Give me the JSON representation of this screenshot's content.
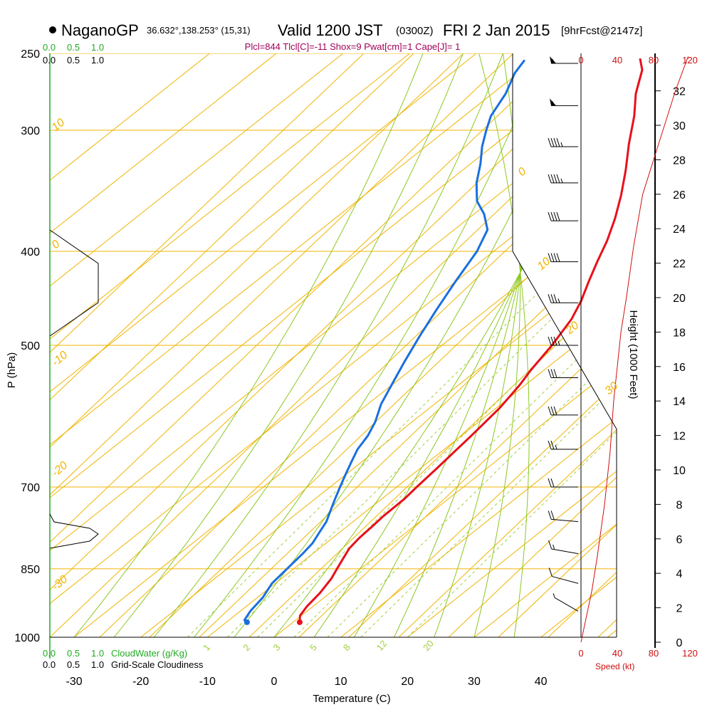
{
  "header": {
    "station": "NaganoGP",
    "coords": "36.632°,138.253° (15,31)",
    "valid": "Valid 1200 JST",
    "utc": "(0300Z)",
    "date": "FRI 2 Jan 2015",
    "forecast": "[9hrFcst@2147z]",
    "indices": "Plcl=844 Tlcl[C]=-11 Shox=9 Pwat[cm]=1 Cape[J]= 1"
  },
  "colors": {
    "temperature": "#e8101a",
    "dewpoint": "#1a6fe0",
    "isotherm": "#f0b400",
    "moist_adiabat": "#8cc820",
    "mixing_ratio": "#a0d040",
    "cloud_water": "#22aa22",
    "speed_profile": "#d01010",
    "indices_text": "#a0005a"
  },
  "chart_data": {
    "type": "line",
    "diagram": "skew-T log-P",
    "xlabel": "Temperature (C)",
    "ylabel": "P (hPa)",
    "x_ticks": [
      "-30",
      "-20",
      "-10",
      "0",
      "10",
      "20",
      "30",
      "40"
    ],
    "p_ticks": [
      "250",
      "300",
      "400",
      "500",
      "700",
      "850",
      "1000"
    ],
    "x_range": [
      -33,
      52
    ],
    "p_range": [
      250,
      1000
    ],
    "isotherm_labels": [
      "10",
      "0",
      "-10",
      "-20",
      "-30",
      "0",
      "10",
      "20",
      "30"
    ],
    "mixing_ratio_labels": [
      "1",
      "2",
      "3",
      "5",
      "8",
      "12",
      "20"
    ],
    "top_scale_colored": [
      "0.0",
      "0.5",
      "1.0"
    ],
    "top_scale_black": [
      "0.0",
      "0.5",
      "1.0"
    ],
    "bottom_scale_colored": [
      "0.0",
      "0.5",
      "1.0"
    ],
    "bottom_scale_black": [
      "0.0",
      "0.5",
      "1.0"
    ],
    "cloud_water_label": "CloudWater (g/Kg)",
    "cloudiness_label": "Grid-Scale Cloudiness",
    "speed_ticks": [
      "0",
      "40",
      "80",
      "120"
    ],
    "speed_label": "Speed (kt)",
    "height_ticks": [
      "0",
      "2",
      "4",
      "6",
      "8",
      "10",
      "12",
      "14",
      "16",
      "18",
      "20",
      "22",
      "24",
      "26",
      "28",
      "30",
      "32"
    ],
    "height_label": "Height (1000 Feet)",
    "series": [
      {
        "name": "Temperature",
        "points": [
          [
            1.0,
            965
          ],
          [
            -0.2,
            950
          ],
          [
            -0.9,
            930
          ],
          [
            -1.5,
            900
          ],
          [
            -2.5,
            870
          ],
          [
            -3.5,
            850
          ],
          [
            -4.5,
            830
          ],
          [
            -5.5,
            810
          ],
          [
            -6.0,
            790
          ],
          [
            -6.2,
            770
          ],
          [
            -6.5,
            750
          ],
          [
            -6.6,
            720
          ],
          [
            -7.0,
            700
          ],
          [
            -7.5,
            670
          ],
          [
            -8.5,
            620
          ],
          [
            -9.5,
            580
          ],
          [
            -10.8,
            550
          ],
          [
            -12.0,
            530
          ],
          [
            -13.5,
            500
          ],
          [
            -15.5,
            470
          ],
          [
            -17.5,
            450
          ],
          [
            -20.0,
            430
          ],
          [
            -22.5,
            410
          ],
          [
            -25.0,
            390
          ],
          [
            -28.0,
            370
          ],
          [
            -31.5,
            350
          ],
          [
            -35.5,
            330
          ],
          [
            -40.0,
            310
          ],
          [
            -44.5,
            290
          ],
          [
            -48.5,
            275
          ],
          [
            -52.0,
            260
          ],
          [
            -54.5,
            253
          ]
        ]
      },
      {
        "name": "Dewpoint",
        "points": [
          [
            -6.9,
            965
          ],
          [
            -7.7,
            960
          ],
          [
            -8.5,
            940
          ],
          [
            -9.2,
            910
          ],
          [
            -10.5,
            880
          ],
          [
            -11.0,
            850
          ],
          [
            -11.5,
            820
          ],
          [
            -12.0,
            800
          ],
          [
            -13.0,
            780
          ],
          [
            -14.0,
            760
          ],
          [
            -15.5,
            740
          ],
          [
            -17.0,
            720
          ],
          [
            -18.5,
            700
          ],
          [
            -20.0,
            680
          ],
          [
            -21.5,
            660
          ],
          [
            -23.0,
            640
          ],
          [
            -24.0,
            620
          ],
          [
            -25.5,
            600
          ],
          [
            -28.0,
            575
          ],
          [
            -30.0,
            550
          ],
          [
            -32.5,
            520
          ],
          [
            -35.0,
            490
          ],
          [
            -37.5,
            460
          ],
          [
            -40.0,
            430
          ],
          [
            -42.5,
            400
          ],
          [
            -45.0,
            380
          ],
          [
            -48.5,
            366
          ],
          [
            -52.0,
            355
          ],
          [
            -55.5,
            340
          ],
          [
            -58.5,
            325
          ],
          [
            -61.5,
            312
          ],
          [
            -64.0,
            300
          ],
          [
            -66.0,
            290
          ],
          [
            -68.0,
            275
          ],
          [
            -70.5,
            262
          ],
          [
            -71.5,
            254
          ]
        ]
      }
    ],
    "wind_barbs": [
      {
        "p": 256,
        "dir": 270,
        "kt": 55
      },
      {
        "p": 283,
        "dir": 270,
        "kt": 55
      },
      {
        "p": 312,
        "dir": 270,
        "kt": 45
      },
      {
        "p": 340,
        "dir": 270,
        "kt": 45
      },
      {
        "p": 372,
        "dir": 270,
        "kt": 40
      },
      {
        "p": 410,
        "dir": 270,
        "kt": 40
      },
      {
        "p": 452,
        "dir": 270,
        "kt": 35
      },
      {
        "p": 500,
        "dir": 270,
        "kt": 35
      },
      {
        "p": 540,
        "dir": 270,
        "kt": 30
      },
      {
        "p": 590,
        "dir": 270,
        "kt": 30
      },
      {
        "p": 640,
        "dir": 270,
        "kt": 25
      },
      {
        "p": 700,
        "dir": 270,
        "kt": 20
      },
      {
        "p": 760,
        "dir": 275,
        "kt": 20
      },
      {
        "p": 820,
        "dir": 280,
        "kt": 15
      },
      {
        "p": 880,
        "dir": 285,
        "kt": 10
      },
      {
        "p": 940,
        "dir": 300,
        "kt": 5
      }
    ],
    "speed_profile": [
      [
        0,
        0
      ],
      [
        8,
        2
      ],
      [
        12,
        3
      ],
      [
        18,
        5
      ],
      [
        26,
        8
      ],
      [
        32,
        11
      ],
      [
        36,
        14
      ],
      [
        40,
        16
      ],
      [
        44,
        18
      ],
      [
        50,
        20
      ],
      [
        58,
        23
      ],
      [
        68,
        26
      ],
      [
        80,
        28
      ],
      [
        92,
        30
      ],
      [
        104,
        32
      ],
      [
        118,
        34
      ]
    ]
  }
}
